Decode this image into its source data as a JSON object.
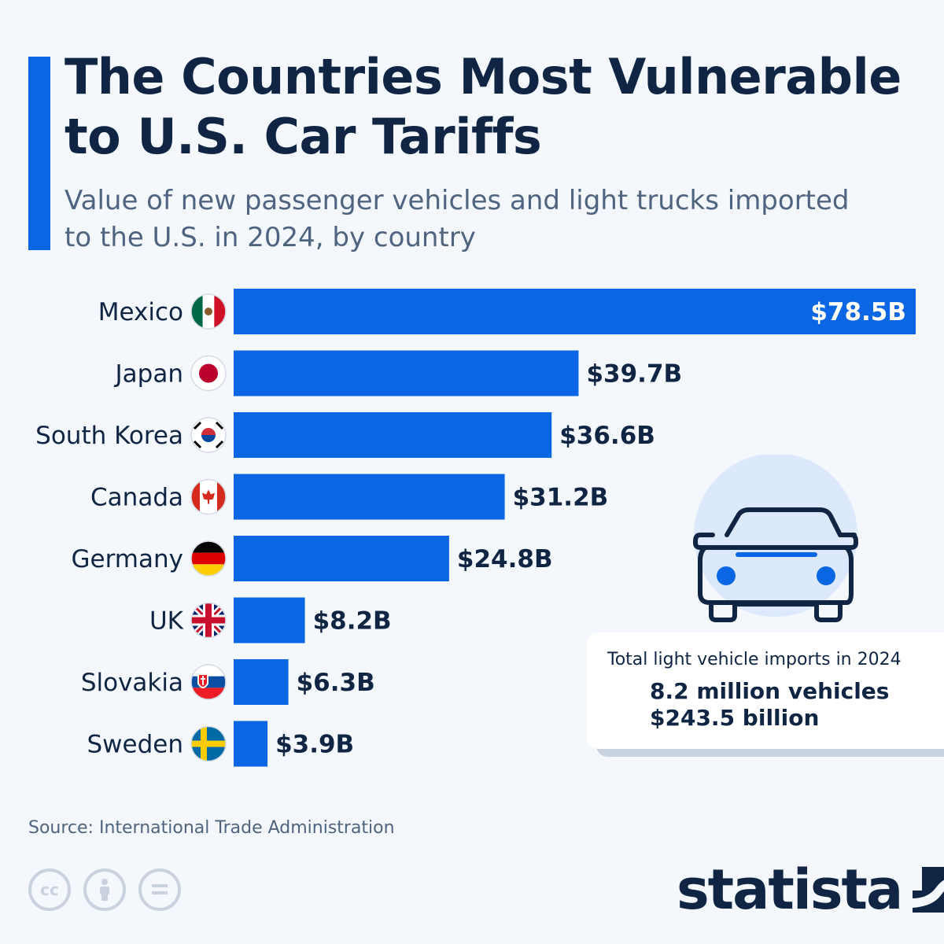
{
  "title": "The Countries Most Vulnerable to U.S. Car Tariffs",
  "subtitle": "Value of new passenger vehicles and light trucks imported to the U.S. in 2024, by country",
  "chart_data": {
    "type": "bar",
    "orientation": "horizontal",
    "title": "",
    "xlabel": "",
    "ylabel": "",
    "categories": [
      "Mexico",
      "Japan",
      "South Korea",
      "Canada",
      "Germany",
      "UK",
      "Slovakia",
      "Sweden"
    ],
    "values": [
      78.5,
      39.7,
      36.6,
      31.2,
      24.8,
      8.2,
      6.3,
      3.9
    ],
    "value_labels": [
      "$78.5B",
      "$39.7B",
      "$36.6B",
      "$31.2B",
      "$24.8B",
      "$8.2B",
      "$6.3B",
      "$3.9B"
    ],
    "xlim": [
      0,
      78.5
    ],
    "grid": false,
    "legend": "none",
    "bar_color": "#0b66e4"
  },
  "flags": [
    "mexico-flag-icon",
    "japan-flag-icon",
    "south-korea-flag-icon",
    "canada-flag-icon",
    "germany-flag-icon",
    "uk-flag-icon",
    "slovakia-flag-icon",
    "sweden-flag-icon"
  ],
  "callout": {
    "label": "Total light vehicle imports in 2024",
    "line1": "8.2 million vehicles",
    "line2": "$243.5 billion"
  },
  "source": "Source: International Trade Administration",
  "license_icons": [
    "cc-icon",
    "attribution-icon",
    "no-derivatives-icon"
  ],
  "brand": "statista",
  "colors": {
    "accent": "#0b66e4",
    "title": "#0f2543",
    "subtitle": "#4f6480",
    "background": "#f4f7fb"
  }
}
